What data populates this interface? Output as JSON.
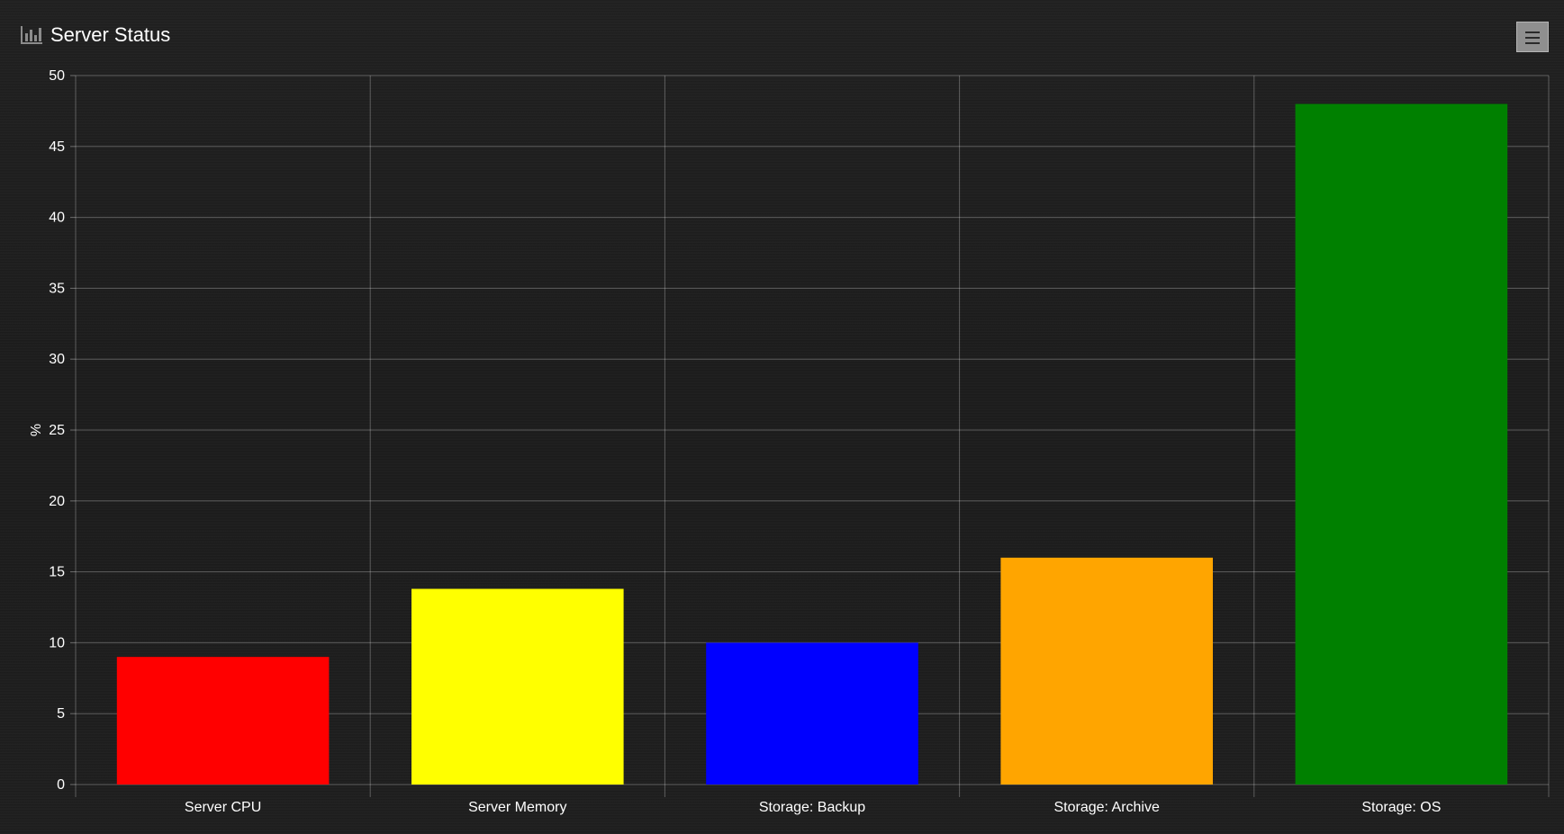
{
  "header": {
    "title": "Server Status",
    "title_icon": "bar-chart-icon",
    "menu_icon": "hamburger-menu-icon"
  },
  "chart_data": {
    "type": "bar",
    "title": "Server Status",
    "xlabel": "",
    "ylabel": "%",
    "ylim": [
      0,
      50
    ],
    "yticks": [
      0,
      5,
      10,
      15,
      20,
      25,
      30,
      35,
      40,
      45,
      50
    ],
    "grid": true,
    "categories": [
      "Server CPU",
      "Server Memory",
      "Storage: Backup",
      "Storage: Archive",
      "Storage: OS"
    ],
    "values": [
      9,
      13.8,
      10,
      16,
      48
    ],
    "colors": [
      "#ff0000",
      "#ffff00",
      "#0000ff",
      "#ffa500",
      "#008000"
    ]
  }
}
